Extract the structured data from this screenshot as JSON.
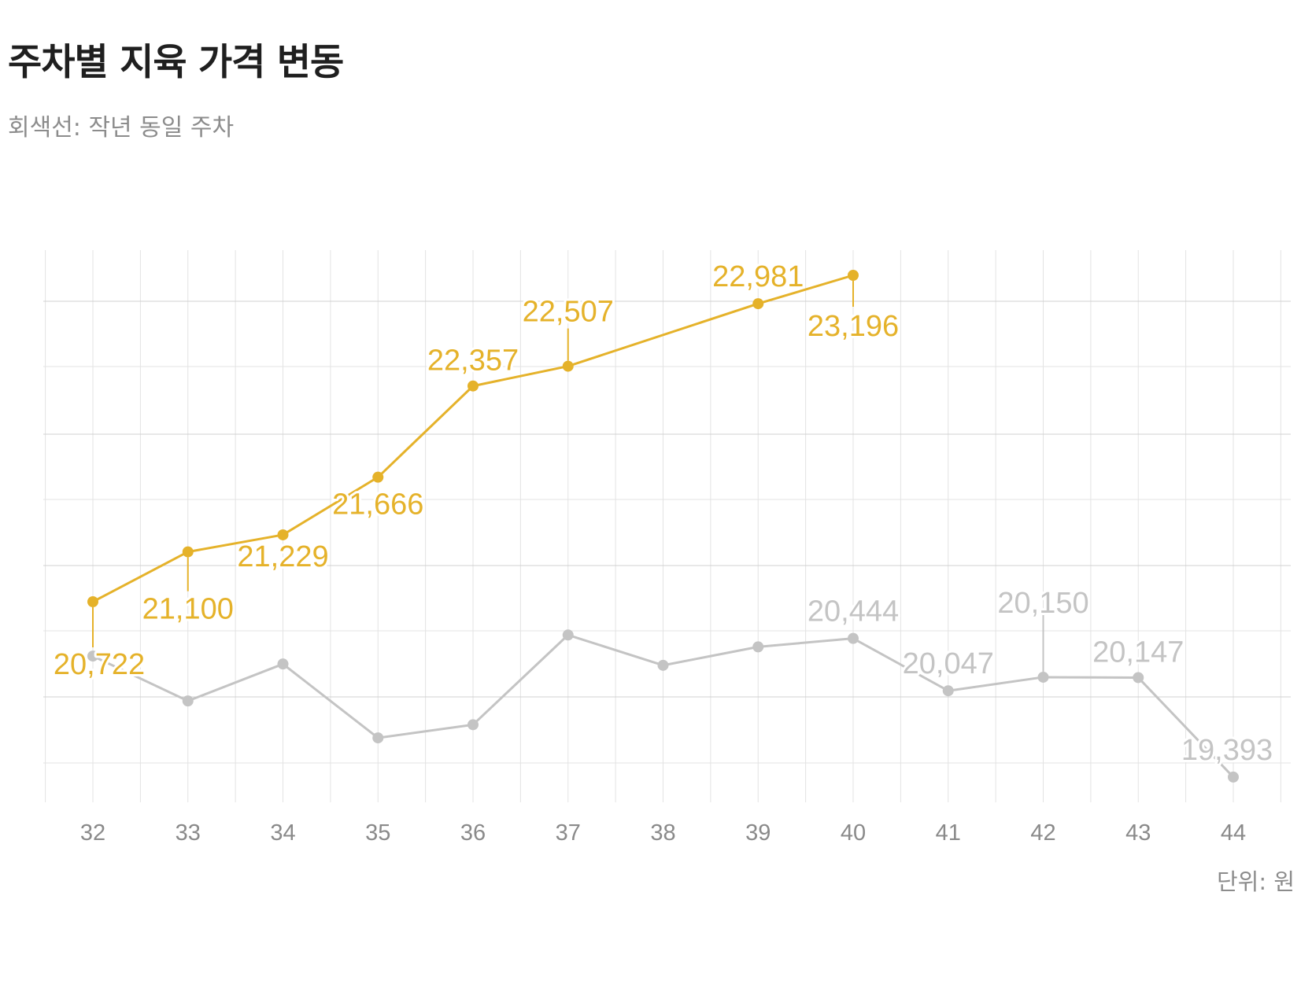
{
  "title": "주차별 지육 가격 변동",
  "subtitle": "회색선: 작년 동일 주차",
  "unit_label": "단위: 원",
  "colors": {
    "current": "#E5B22A",
    "previous": "#C4C4C4",
    "grid": "#e3e3e3",
    "grid_major": "#d0d0d0"
  },
  "chart_data": {
    "type": "line",
    "title": "주차별 지육 가격 변동",
    "subtitle": "회색선: 작년 동일 주차",
    "x": [
      32,
      33,
      34,
      35,
      36,
      37,
      38,
      39,
      40,
      41,
      42,
      43,
      44
    ],
    "ylim": [
      19200,
      23400
    ],
    "grid": true,
    "series": [
      {
        "key": "current",
        "x": [
          32,
          33,
          34,
          35,
          36,
          37,
          39,
          40
        ],
        "values": [
          20722,
          21100,
          21229,
          21666,
          22357,
          22507,
          22981,
          23196
        ],
        "labels": [
          "20,722",
          "21,100",
          "21,229",
          "21,666",
          "22,357",
          "22,507",
          "22,981",
          "23,196"
        ],
        "color": "#E5B22A"
      },
      {
        "key": "previous",
        "name": "작년 동일 주차",
        "x": [
          32,
          33,
          34,
          35,
          36,
          37,
          38,
          39,
          40,
          41,
          42,
          43,
          44
        ],
        "values": [
          20310,
          19970,
          20250,
          19690,
          19790,
          20470,
          20240,
          20380,
          20444,
          20047,
          20150,
          20147,
          19393
        ],
        "labels": [
          null,
          null,
          null,
          null,
          null,
          null,
          null,
          null,
          "20,444",
          "20,047",
          "20,150",
          "20,147",
          "19,393"
        ],
        "color": "#C4C4C4"
      }
    ]
  }
}
